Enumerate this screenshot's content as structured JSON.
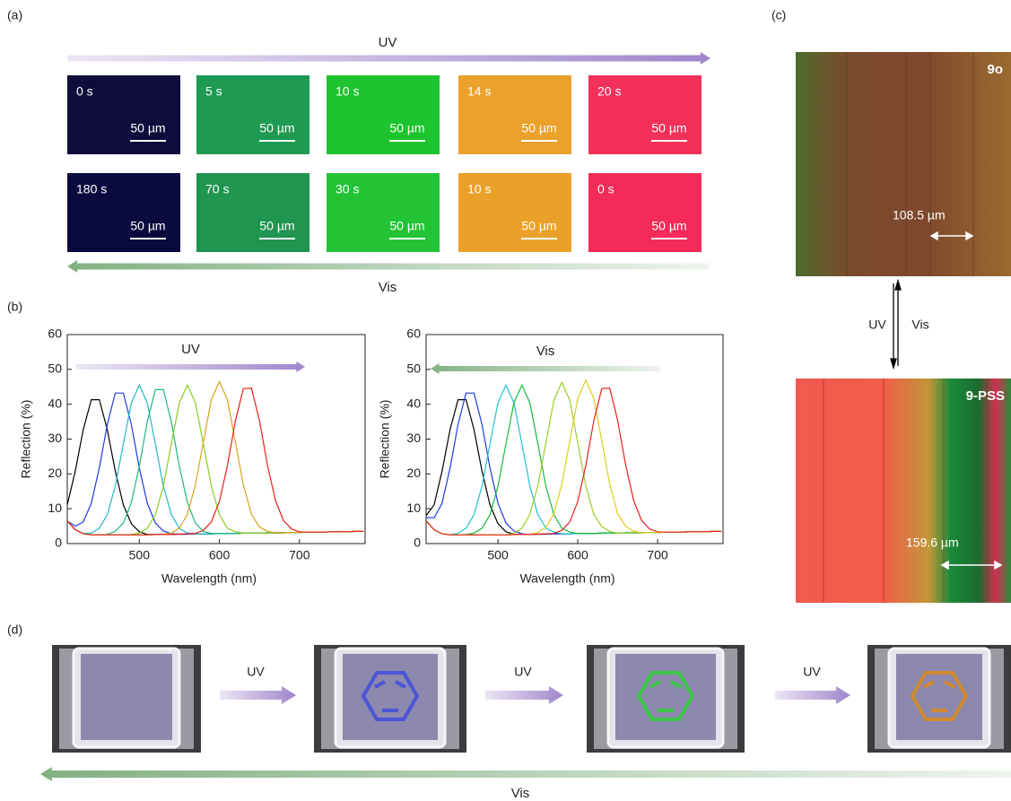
{
  "panels": {
    "a": {
      "label": "(a)",
      "uv": "UV",
      "vis": "Vis",
      "top_row": [
        "0 s",
        "5 s",
        "10 s",
        "14 s",
        "20 s"
      ],
      "bottom_row": [
        "180 s",
        "70 s",
        "30 s",
        "10 s",
        "0 s"
      ],
      "scale_bar": "50 µm"
    },
    "b": {
      "label": "(b)"
    },
    "c": {
      "label": "(c)",
      "top_image": "9o",
      "top_scale": "108.5 µm",
      "uv": "UV",
      "vis": "Vis",
      "bottom_image": "9-PSS",
      "bottom_scale": "159.6 µm"
    },
    "d": {
      "label": "(d)",
      "uv": "UV",
      "vis": "Vis"
    }
  },
  "chart_data": [
    {
      "type": "line",
      "xlabel": "Wavelength (nm)",
      "ylabel": "Reflection (%)",
      "annotation": "UV",
      "x": [
        410,
        420,
        430,
        440,
        450,
        460,
        470,
        480,
        490,
        500,
        510,
        520,
        530,
        540,
        550,
        560,
        570,
        580,
        590,
        600,
        610,
        620,
        630,
        640,
        650,
        660,
        670,
        680,
        690,
        700,
        710,
        720,
        730,
        740,
        750,
        760,
        770,
        780
      ],
      "xlim": [
        410,
        782
      ],
      "xticks": [
        500,
        600,
        700
      ],
      "ylim": [
        0,
        60
      ],
      "yticks": [
        0,
        10,
        20,
        30,
        40,
        50,
        60
      ],
      "series": [
        {
          "color": "#000000",
          "values": [
            11.1,
            20.8,
            32.7,
            41.3,
            41.3,
            32.7,
            20.8,
            11.1,
            5.7,
            3.4,
            2.6,
            2.6,
            2.6,
            2.6,
            2.7,
            2.7,
            2.8,
            2.8,
            2.8,
            2.9,
            2.9,
            2.9,
            3.0,
            3.0,
            3.0,
            3.1,
            3.1,
            3.1,
            3.2,
            3.2,
            3.3,
            3.3,
            3.3,
            3.4,
            3.4,
            3.4,
            3.5,
            3.5
          ]
        },
        {
          "color": "#1f3be0",
          "values": [
            6.5,
            5.0,
            6.2,
            11.6,
            21.7,
            34.2,
            43.2,
            43.2,
            34.2,
            21.7,
            11.6,
            5.9,
            3.6,
            2.8,
            2.7,
            2.7,
            2.8,
            2.8,
            2.8,
            2.9,
            2.9,
            2.9,
            3.0,
            3.0,
            3.0,
            3.1,
            3.1,
            3.1,
            3.2,
            3.2,
            3.3,
            3.3,
            3.3,
            3.4,
            3.4,
            3.4,
            3.5,
            3.5
          ]
        },
        {
          "color": "#22b8c8",
          "values": [
            6.5,
            4.0,
            2.9,
            3.0,
            4.4,
            8.3,
            16.5,
            28.6,
            40.4,
            45.5,
            40.4,
            28.6,
            16.5,
            8.3,
            4.4,
            3.0,
            2.8,
            2.8,
            2.8,
            2.9,
            2.9,
            2.9,
            3.0,
            3.0,
            3.0,
            3.1,
            3.1,
            3.1,
            3.2,
            3.2,
            3.3,
            3.3,
            3.3,
            3.4,
            3.4,
            3.4,
            3.5,
            3.5
          ]
        },
        {
          "color": "#1cb878",
          "values": [
            6.5,
            4.0,
            2.8,
            2.5,
            2.5,
            2.6,
            3.5,
            5.9,
            11.8,
            22.2,
            35.0,
            44.2,
            44.2,
            35.0,
            22.2,
            11.8,
            5.9,
            3.5,
            2.9,
            2.9,
            2.9,
            2.9,
            3.0,
            3.0,
            3.0,
            3.1,
            3.1,
            3.1,
            3.2,
            3.2,
            3.3,
            3.3,
            3.3,
            3.4,
            3.4,
            3.4,
            3.5,
            3.5
          ]
        },
        {
          "color": "#8acb1e",
          "values": [
            6.5,
            4.0,
            2.8,
            2.5,
            2.5,
            2.5,
            2.5,
            2.5,
            2.6,
            3.0,
            4.4,
            8.3,
            16.5,
            28.6,
            40.4,
            45.5,
            40.4,
            28.6,
            16.5,
            8.3,
            4.4,
            3.4,
            3.0,
            3.0,
            3.0,
            3.1,
            3.1,
            3.1,
            3.2,
            3.2,
            3.3,
            3.3,
            3.3,
            3.4,
            3.4,
            3.4,
            3.5,
            3.5
          ]
        },
        {
          "color": "#d9a21c",
          "values": [
            6.5,
            4.0,
            2.8,
            2.5,
            2.5,
            2.5,
            2.5,
            2.5,
            2.5,
            2.5,
            2.5,
            2.6,
            2.6,
            3.0,
            4.4,
            8.4,
            16.8,
            29.2,
            41.3,
            46.5,
            41.3,
            29.2,
            16.8,
            8.4,
            4.8,
            3.5,
            3.1,
            3.1,
            3.2,
            3.2,
            3.3,
            3.3,
            3.3,
            3.4,
            3.4,
            3.4,
            3.5,
            3.5
          ]
        },
        {
          "color": "#e8201e",
          "values": [
            6.5,
            4.0,
            2.8,
            2.5,
            2.5,
            2.5,
            2.5,
            2.5,
            2.5,
            2.5,
            2.5,
            2.6,
            2.6,
            2.6,
            2.7,
            2.8,
            2.9,
            3.8,
            6.2,
            12.1,
            22.4,
            35.2,
            44.5,
            44.6,
            35.4,
            22.6,
            12.4,
            6.6,
            4.2,
            3.4,
            3.3,
            3.3,
            3.3,
            3.4,
            3.4,
            3.4,
            3.5,
            3.5
          ]
        }
      ]
    },
    {
      "type": "line",
      "xlabel": "Wavelength (nm)",
      "ylabel": "Reflection (%)",
      "annotation": "Vis",
      "x": [
        410,
        420,
        430,
        440,
        450,
        460,
        470,
        480,
        490,
        500,
        510,
        520,
        530,
        540,
        550,
        560,
        570,
        580,
        590,
        600,
        610,
        620,
        630,
        640,
        650,
        660,
        670,
        680,
        690,
        700,
        710,
        720,
        730,
        740,
        750,
        760,
        770,
        780
      ],
      "xlim": [
        410,
        782
      ],
      "xticks": [
        500,
        600,
        700
      ],
      "ylim": [
        0,
        60
      ],
      "yticks": [
        0,
        10,
        20,
        30,
        40,
        50,
        60
      ],
      "series": [
        {
          "color": "#000000",
          "values": [
            8.0,
            11.1,
            20.8,
            32.7,
            41.3,
            41.3,
            32.7,
            20.8,
            11.1,
            5.7,
            3.4,
            2.7,
            2.6,
            2.6,
            2.7,
            2.7,
            2.8,
            2.8,
            2.8,
            2.9,
            2.9,
            2.9,
            3.0,
            3.0,
            3.0,
            3.1,
            3.1,
            3.1,
            3.2,
            3.2,
            3.3,
            3.3,
            3.3,
            3.4,
            3.4,
            3.4,
            3.5,
            3.5
          ]
        },
        {
          "color": "#1f3be0",
          "values": [
            7.5,
            7.4,
            11.6,
            21.7,
            34.2,
            43.2,
            43.2,
            34.2,
            21.7,
            11.6,
            5.9,
            3.6,
            2.8,
            2.6,
            2.7,
            2.7,
            2.8,
            2.8,
            2.8,
            2.9,
            2.9,
            2.9,
            3.0,
            3.0,
            3.0,
            3.1,
            3.1,
            3.1,
            3.2,
            3.2,
            3.3,
            3.3,
            3.3,
            3.4,
            3.4,
            3.4,
            3.5,
            3.5
          ]
        },
        {
          "color": "#22c0d0",
          "values": [
            6.5,
            4.0,
            2.8,
            2.5,
            3.0,
            4.4,
            8.3,
            16.5,
            28.6,
            40.4,
            45.5,
            40.4,
            28.6,
            16.5,
            8.3,
            4.4,
            3.3,
            2.8,
            2.8,
            2.9,
            2.9,
            2.9,
            3.0,
            3.0,
            3.0,
            3.1,
            3.1,
            3.1,
            3.2,
            3.2,
            3.3,
            3.3,
            3.3,
            3.4,
            3.4,
            3.4,
            3.5,
            3.5
          ]
        },
        {
          "color": "#18b83c",
          "values": [
            6.5,
            4.0,
            2.8,
            2.5,
            2.5,
            2.6,
            3.0,
            4.4,
            8.3,
            16.5,
            28.6,
            40.4,
            45.5,
            40.4,
            28.6,
            16.5,
            8.3,
            4.4,
            3.3,
            2.9,
            2.9,
            2.9,
            3.0,
            3.0,
            3.0,
            3.1,
            3.1,
            3.1,
            3.2,
            3.2,
            3.3,
            3.3,
            3.3,
            3.4,
            3.4,
            3.4,
            3.5,
            3.5
          ]
        },
        {
          "color": "#9acd24",
          "values": [
            6.5,
            4.0,
            2.8,
            2.5,
            2.5,
            2.5,
            2.5,
            2.5,
            2.5,
            2.5,
            2.5,
            3.0,
            4.4,
            8.4,
            16.6,
            28.9,
            41.1,
            46.3,
            41.1,
            28.9,
            16.6,
            8.4,
            4.9,
            3.5,
            3.0,
            3.1,
            3.1,
            3.1,
            3.2,
            3.2,
            3.3,
            3.3,
            3.3,
            3.4,
            3.4,
            3.4,
            3.5,
            3.5
          ]
        },
        {
          "color": "#e0cc1c",
          "values": [
            6.5,
            4.0,
            2.8,
            2.5,
            2.5,
            2.5,
            2.5,
            2.5,
            2.5,
            2.5,
            2.5,
            2.6,
            2.6,
            2.6,
            3.2,
            4.6,
            8.6,
            17.0,
            29.6,
            41.7,
            46.9,
            41.7,
            29.6,
            17.0,
            8.6,
            5.0,
            3.6,
            3.1,
            3.2,
            3.2,
            3.3,
            3.3,
            3.3,
            3.4,
            3.4,
            3.4,
            3.5,
            3.5
          ]
        },
        {
          "color": "#e8201e",
          "values": [
            6.5,
            4.0,
            2.8,
            2.5,
            2.5,
            2.5,
            2.5,
            2.5,
            2.5,
            2.5,
            2.5,
            2.6,
            2.6,
            2.6,
            2.7,
            2.8,
            2.9,
            3.8,
            6.2,
            12.1,
            22.4,
            35.2,
            44.5,
            44.6,
            35.4,
            22.6,
            12.4,
            6.6,
            4.2,
            3.4,
            3.3,
            3.3,
            3.3,
            3.4,
            3.4,
            3.4,
            3.5,
            3.5
          ]
        }
      ]
    }
  ]
}
